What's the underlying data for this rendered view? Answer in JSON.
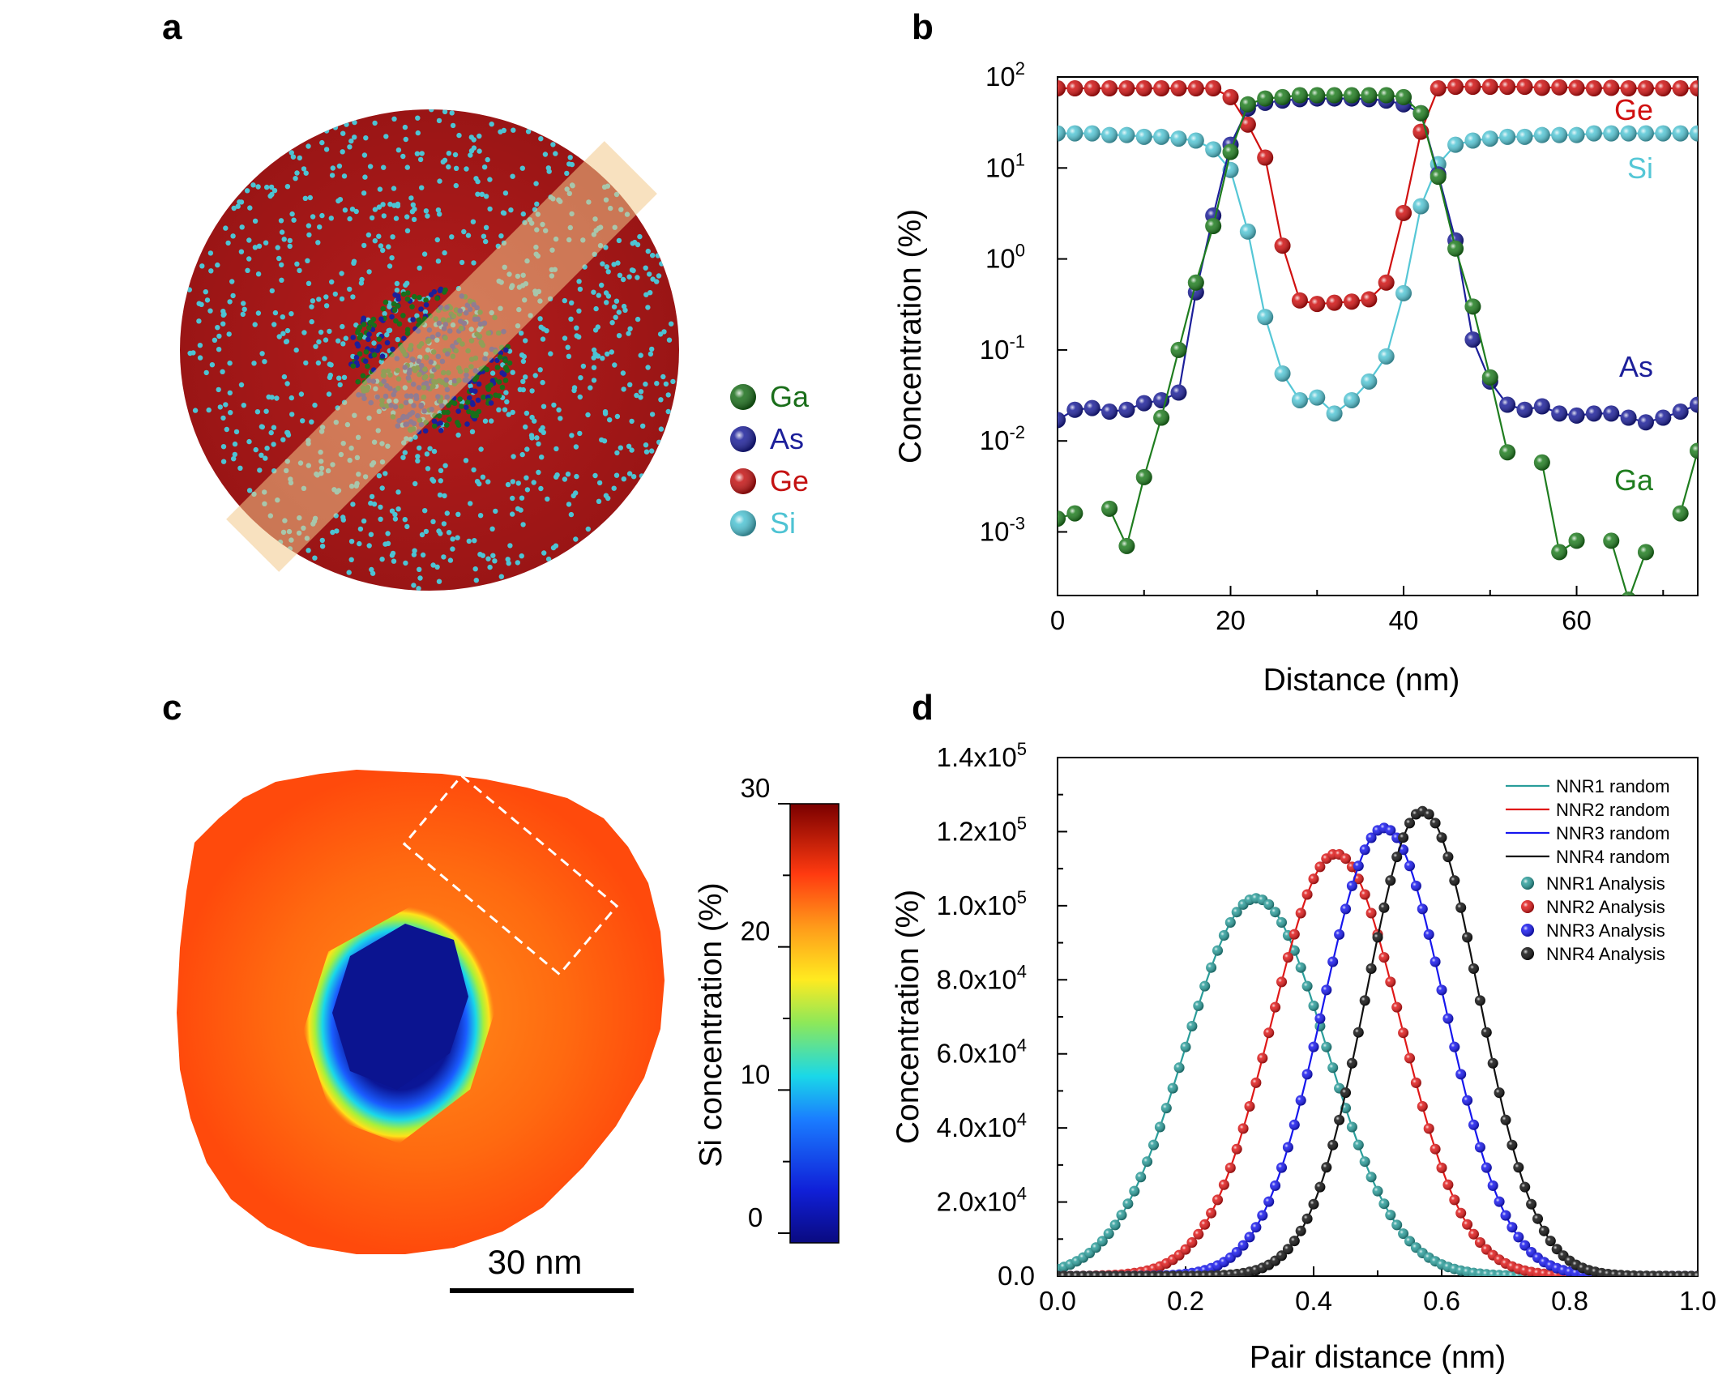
{
  "panels": {
    "a": "a",
    "b": "b",
    "c": "c",
    "d": "d"
  },
  "colors": {
    "Ga": "#1f7d1f",
    "As": "#1c1f9a",
    "Ge": "#d01010",
    "Si": "#55c7d6",
    "NNR1": "#2a9d9a",
    "NNR2": "#e01818",
    "NNR3": "#1616ee",
    "NNR4": "#111111"
  },
  "panel_a": {
    "legend": [
      {
        "label": "Ga",
        "color": "#1a6e1a"
      },
      {
        "label": "As",
        "color": "#1c1f9a"
      },
      {
        "label": "Ge",
        "color": "#c41212"
      },
      {
        "label": "Si",
        "color": "#4ec3d3"
      }
    ]
  },
  "panel_c": {
    "colorbar_label": "Si concentration (%)",
    "colorbar_ticks": [
      "30",
      "20",
      "10",
      "0"
    ],
    "scalebar_label": "30 nm"
  },
  "chart_data": [
    {
      "panel": "b",
      "type": "line",
      "xlabel": "Distance (nm)",
      "ylabel": "Concentration (%)",
      "xlim": [
        0,
        74
      ],
      "xticks": [
        0,
        20,
        40,
        60
      ],
      "yscale": "log",
      "ylim": [
        0.0002,
        100
      ],
      "yticks": [
        {
          "base": "10",
          "exp": "2"
        },
        {
          "base": "10",
          "exp": "1"
        },
        {
          "base": "10",
          "exp": "0"
        },
        {
          "base": "10",
          "exp": "-1"
        },
        {
          "base": "10",
          "exp": "-2"
        },
        {
          "base": "10",
          "exp": "-3"
        }
      ],
      "x": [
        0,
        2,
        4,
        6,
        8,
        10,
        12,
        14,
        16,
        18,
        20,
        22,
        24,
        26,
        28,
        30,
        32,
        34,
        36,
        38,
        40,
        42,
        44,
        46,
        48,
        50,
        52,
        54,
        56,
        58,
        60,
        62,
        64,
        66,
        68,
        70,
        72,
        74
      ],
      "series": [
        {
          "name": "Ge",
          "key": "Ge",
          "values": [
            75,
            75,
            75,
            75,
            75,
            75,
            75,
            75,
            75,
            75,
            60,
            30,
            13,
            1.4,
            0.35,
            0.32,
            0.33,
            0.34,
            0.36,
            0.55,
            3.2,
            25,
            75,
            78,
            78,
            78,
            78,
            78,
            76,
            77,
            76,
            75,
            76,
            75,
            75,
            75,
            75,
            75
          ]
        },
        {
          "name": "Si",
          "key": "Si",
          "values": [
            24,
            24,
            24,
            23,
            23,
            22,
            22,
            21,
            20,
            16,
            9.5,
            2,
            0.23,
            0.055,
            0.028,
            0.03,
            0.02,
            0.028,
            0.045,
            0.085,
            0.42,
            3.8,
            11,
            18,
            20,
            21,
            22,
            22,
            23,
            23,
            23,
            24,
            24,
            24,
            24,
            24,
            24,
            24
          ]
        },
        {
          "name": "As",
          "key": "As",
          "values": [
            0.017,
            0.022,
            0.023,
            0.021,
            0.022,
            0.026,
            0.028,
            0.034,
            0.43,
            3.0,
            18,
            45,
            52,
            55,
            57,
            58,
            58,
            58,
            57,
            55,
            50,
            40,
            8.5,
            1.6,
            0.13,
            0.045,
            0.025,
            0.022,
            0.024,
            0.02,
            0.019,
            0.02,
            0.02,
            0.018,
            0.016,
            0.018,
            0.021,
            0.025
          ]
        },
        {
          "name": "Ga",
          "key": "Ga",
          "values": [
            0.0014,
            0.0016,
            null,
            0.0018,
            0.0007,
            0.004,
            0.018,
            0.1,
            0.55,
            2.3,
            15,
            50,
            58,
            60,
            63,
            63,
            63,
            63,
            63,
            63,
            60,
            40,
            8,
            1.3,
            0.3,
            0.05,
            0.0075,
            null,
            0.0058,
            0.0006,
            0.0008,
            null,
            0.0008,
            0.00018,
            0.0006,
            null,
            0.0016,
            0.0078
          ]
        }
      ]
    },
    {
      "panel": "d",
      "type": "line",
      "xlabel": "Pair distance (nm)",
      "ylabel": "Concentration (%)",
      "xlim": [
        0,
        1
      ],
      "xticks": [
        "0.0",
        "0.2",
        "0.4",
        "0.6",
        "0.8",
        "1.0"
      ],
      "ylim": [
        0,
        140000
      ],
      "yticks": [
        {
          "value": 0,
          "mant": "0.0",
          "exp": ""
        },
        {
          "value": 20000,
          "mant": "2.0x10",
          "exp": "4"
        },
        {
          "value": 40000,
          "mant": "4.0x10",
          "exp": "4"
        },
        {
          "value": 60000,
          "mant": "6.0x10",
          "exp": "4"
        },
        {
          "value": 80000,
          "mant": "8.0x10",
          "exp": "4"
        },
        {
          "value": 100000,
          "mant": "1.0x10",
          "exp": "5"
        },
        {
          "value": 120000,
          "mant": "1.2x10",
          "exp": "5"
        },
        {
          "value": 140000,
          "mant": "1.4x10",
          "exp": "5"
        }
      ],
      "series": [
        {
          "name": "NNR1 random",
          "analysis_name": "NNR1 Analysis",
          "key": "NNR1",
          "peak_x": 0.31,
          "peak_y": 102000,
          "width": 0.11
        },
        {
          "name": "NNR2 random",
          "analysis_name": "NNR2 Analysis",
          "key": "NNR2",
          "peak_x": 0.435,
          "peak_y": 114000,
          "width": 0.1
        },
        {
          "name": "NNR3 random",
          "analysis_name": "NNR3 Analysis",
          "key": "NNR3",
          "peak_x": 0.51,
          "peak_y": 121000,
          "width": 0.095
        },
        {
          "name": "NNR4 random",
          "analysis_name": "NNR4 Analysis",
          "key": "NNR4",
          "peak_x": 0.57,
          "peak_y": 125500,
          "width": 0.088
        }
      ]
    }
  ]
}
